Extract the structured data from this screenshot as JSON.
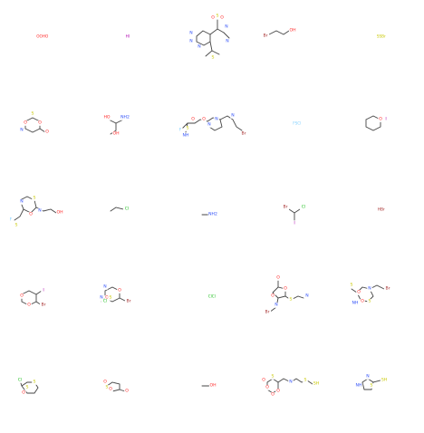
{
  "colors": {
    "bond": "#444444",
    "O": "#ff2a2a",
    "N": "#3050f8",
    "S": "#c8c800",
    "Cl": "#1fc01f",
    "F": "#7fd0ff",
    "I": "#b000b0",
    "Br": "#a52a2a",
    "C": "#444444"
  },
  "molecules": [
    {
      "row": 0,
      "col": 0,
      "kind": "text",
      "text": "OOHO",
      "color": "#ff2a2a"
    },
    {
      "row": 0,
      "col": 1,
      "kind": "text",
      "text": "HI",
      "color": "#b000b0"
    },
    {
      "row": 0,
      "col": 2,
      "kind": "structure",
      "atoms": [
        "N",
        "N",
        "N",
        "S",
        "O",
        "O",
        "N",
        "N",
        "S"
      ]
    },
    {
      "row": 0,
      "col": 3,
      "kind": "structure",
      "atoms": [
        "Br",
        "OH"
      ]
    },
    {
      "row": 0,
      "col": 4,
      "kind": "text",
      "text": "SSBr",
      "color": "#c8c800"
    },
    {
      "row": 1,
      "col": 0,
      "kind": "structure",
      "atoms": [
        "S",
        "O",
        "O",
        "N",
        "O"
      ]
    },
    {
      "row": 1,
      "col": 1,
      "kind": "structure",
      "atoms": [
        "HO",
        "NH2",
        "OH"
      ]
    },
    {
      "row": 1,
      "col": 2,
      "kind": "structure",
      "atoms": [
        "O",
        "O",
        "N",
        "N",
        "N",
        "S",
        "F",
        "NH",
        "Br"
      ]
    },
    {
      "row": 1,
      "col": 3,
      "kind": "text",
      "text": "FSCl",
      "color": "#7fd0ff"
    },
    {
      "row": 1,
      "col": 4,
      "kind": "structure",
      "atoms": [
        "O",
        "I"
      ]
    },
    {
      "row": 2,
      "col": 0,
      "kind": "structure",
      "atoms": [
        "N",
        "S",
        "O",
        "N",
        "F",
        "S",
        "OH"
      ]
    },
    {
      "row": 2,
      "col": 1,
      "kind": "structure",
      "atoms": [
        "Cl"
      ]
    },
    {
      "row": 2,
      "col": 2,
      "kind": "structure",
      "atoms": [
        "NH2"
      ]
    },
    {
      "row": 2,
      "col": 3,
      "kind": "structure",
      "atoms": [
        "Br",
        "Cl",
        "I"
      ]
    },
    {
      "row": 2,
      "col": 4,
      "kind": "text",
      "text": "HBr",
      "color": "#a52a2a"
    },
    {
      "row": 3,
      "col": 0,
      "kind": "structure",
      "atoms": [
        "O",
        "O",
        "I",
        "Br"
      ]
    },
    {
      "row": 3,
      "col": 1,
      "kind": "structure",
      "atoms": [
        "N",
        "O",
        "O",
        "N",
        "S",
        "Cl",
        "Br"
      ]
    },
    {
      "row": 3,
      "col": 2,
      "kind": "text",
      "text": "ClCl",
      "color": "#1fc01f"
    },
    {
      "row": 3,
      "col": 3,
      "kind": "structure",
      "atoms": [
        "O",
        "O",
        "O",
        "S",
        "N",
        "N",
        "Br"
      ]
    },
    {
      "row": 3,
      "col": 4,
      "kind": "structure",
      "atoms": [
        "S",
        "O",
        "N",
        "O",
        "NH",
        "S",
        "Br"
      ]
    },
    {
      "row": 4,
      "col": 0,
      "kind": "structure",
      "atoms": [
        "Cl",
        "S",
        "O",
        "S"
      ]
    },
    {
      "row": 4,
      "col": 1,
      "kind": "structure",
      "atoms": [
        "O",
        "S",
        "O",
        "O"
      ]
    },
    {
      "row": 4,
      "col": 2,
      "kind": "structure",
      "atoms": [
        "OH"
      ]
    },
    {
      "row": 4,
      "col": 3,
      "kind": "structure",
      "atoms": [
        "O",
        "O",
        "S",
        "O",
        "O",
        "N",
        "S",
        "SH"
      ]
    },
    {
      "row": 4,
      "col": 4,
      "kind": "structure",
      "atoms": [
        "NH",
        "N",
        "S",
        "SH"
      ]
    }
  ]
}
